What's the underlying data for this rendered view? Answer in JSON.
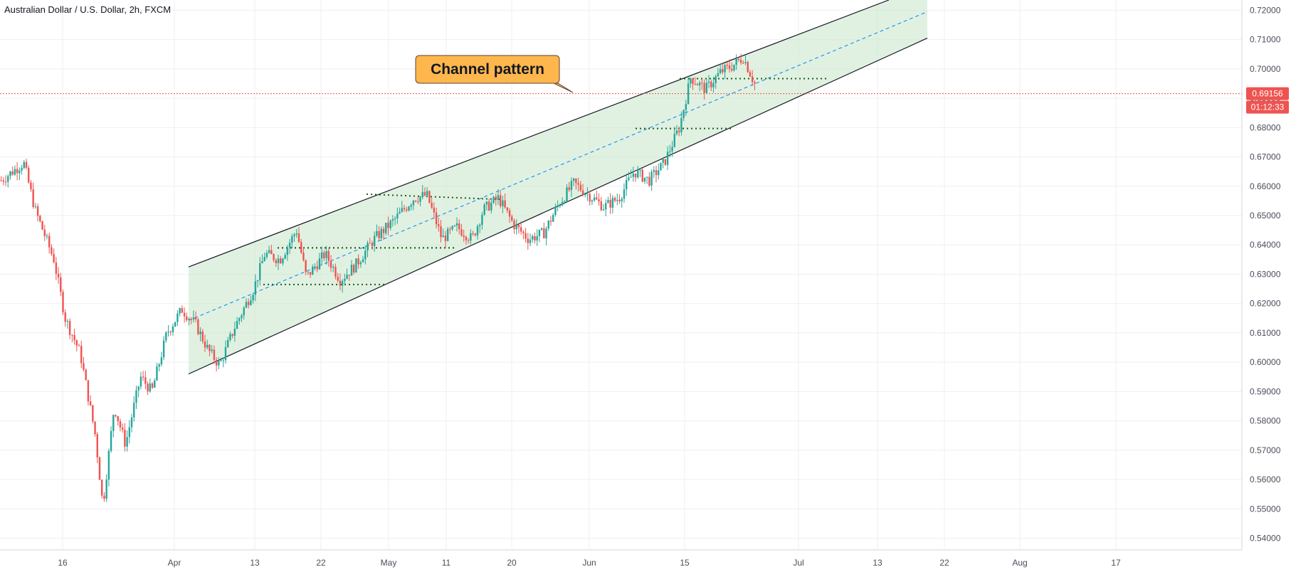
{
  "chart_data": {
    "type": "candlestick",
    "title": "Australian Dollar / U.S. Dollar, 2h, FXCM",
    "y_ticks": [
      "0.54000",
      "0.55000",
      "0.56000",
      "0.57000",
      "0.58000",
      "0.59000",
      "0.60000",
      "0.61000",
      "0.62000",
      "0.63000",
      "0.64000",
      "0.65000",
      "0.66000",
      "0.67000",
      "0.68000",
      "0.69000",
      "0.70000",
      "0.71000",
      "0.72000"
    ],
    "ylim": [
      0.536,
      0.7235
    ],
    "x_ticks": [
      "16",
      "Apr",
      "13",
      "22",
      "May",
      "11",
      "20",
      "Jun",
      "15",
      "Jul",
      "13",
      "22",
      "Aug",
      "17"
    ],
    "grid": true,
    "last_price": {
      "label": "0.69156",
      "value": 0.69156,
      "color": "#ef5350"
    },
    "countdown": "01:12:33",
    "annotation": {
      "text": "Channel pattern"
    },
    "channel": {
      "upper_start": 0.6325,
      "upper_end": 0.7285,
      "lower_start": 0.596,
      "lower_end": 0.7105,
      "fill_color": "#c8e6c9",
      "line_color": "#131722",
      "mid_color": "#2196f3"
    },
    "support_resistance_levels": [
      0.6265,
      0.639,
      0.6573,
      0.6555,
      0.639,
      0.6967,
      0.6797
    ],
    "colors": {
      "up": "#26a69a",
      "down": "#ef5350",
      "dotted_levels": "#1b5e20"
    },
    "price_path": [
      [
        0,
        0.662
      ],
      [
        0.03,
        0.668
      ],
      [
        0.045,
        0.652
      ],
      [
        0.07,
        0.635
      ],
      [
        0.085,
        0.615
      ],
      [
        0.105,
        0.603
      ],
      [
        0.125,
        0.575
      ],
      [
        0.135,
        0.551
      ],
      [
        0.15,
        0.585
      ],
      [
        0.165,
        0.572
      ],
      [
        0.185,
        0.595
      ],
      [
        0.2,
        0.59
      ],
      [
        0.22,
        0.61
      ],
      [
        0.24,
        0.618
      ],
      [
        0.258,
        0.613
      ],
      [
        0.275,
        0.604
      ],
      [
        0.29,
        0.599
      ],
      [
        0.31,
        0.612
      ],
      [
        0.335,
        0.625
      ],
      [
        0.35,
        0.637
      ],
      [
        0.37,
        0.635
      ],
      [
        0.392,
        0.645
      ],
      [
        0.405,
        0.629
      ],
      [
        0.43,
        0.637
      ],
      [
        0.45,
        0.628
      ],
      [
        0.47,
        0.633
      ],
      [
        0.495,
        0.642
      ],
      [
        0.52,
        0.648
      ],
      [
        0.548,
        0.656
      ],
      [
        0.565,
        0.657
      ],
      [
        0.585,
        0.642
      ],
      [
        0.605,
        0.646
      ],
      [
        0.625,
        0.642
      ],
      [
        0.64,
        0.652
      ],
      [
        0.66,
        0.656
      ],
      [
        0.68,
        0.647
      ],
      [
        0.7,
        0.642
      ],
      [
        0.72,
        0.644
      ],
      [
        0.74,
        0.654
      ],
      [
        0.76,
        0.661
      ],
      [
        0.78,
        0.657
      ],
      [
        0.8,
        0.653
      ],
      [
        0.82,
        0.656
      ],
      [
        0.84,
        0.665
      ],
      [
        0.86,
        0.662
      ],
      [
        0.88,
        0.668
      ],
      [
        0.9,
        0.68
      ],
      [
        0.915,
        0.697
      ],
      [
        0.935,
        0.693
      ],
      [
        0.955,
        0.699
      ],
      [
        0.97,
        0.701
      ],
      [
        0.985,
        0.704
      ],
      [
        1.0,
        0.695
      ]
    ]
  }
}
